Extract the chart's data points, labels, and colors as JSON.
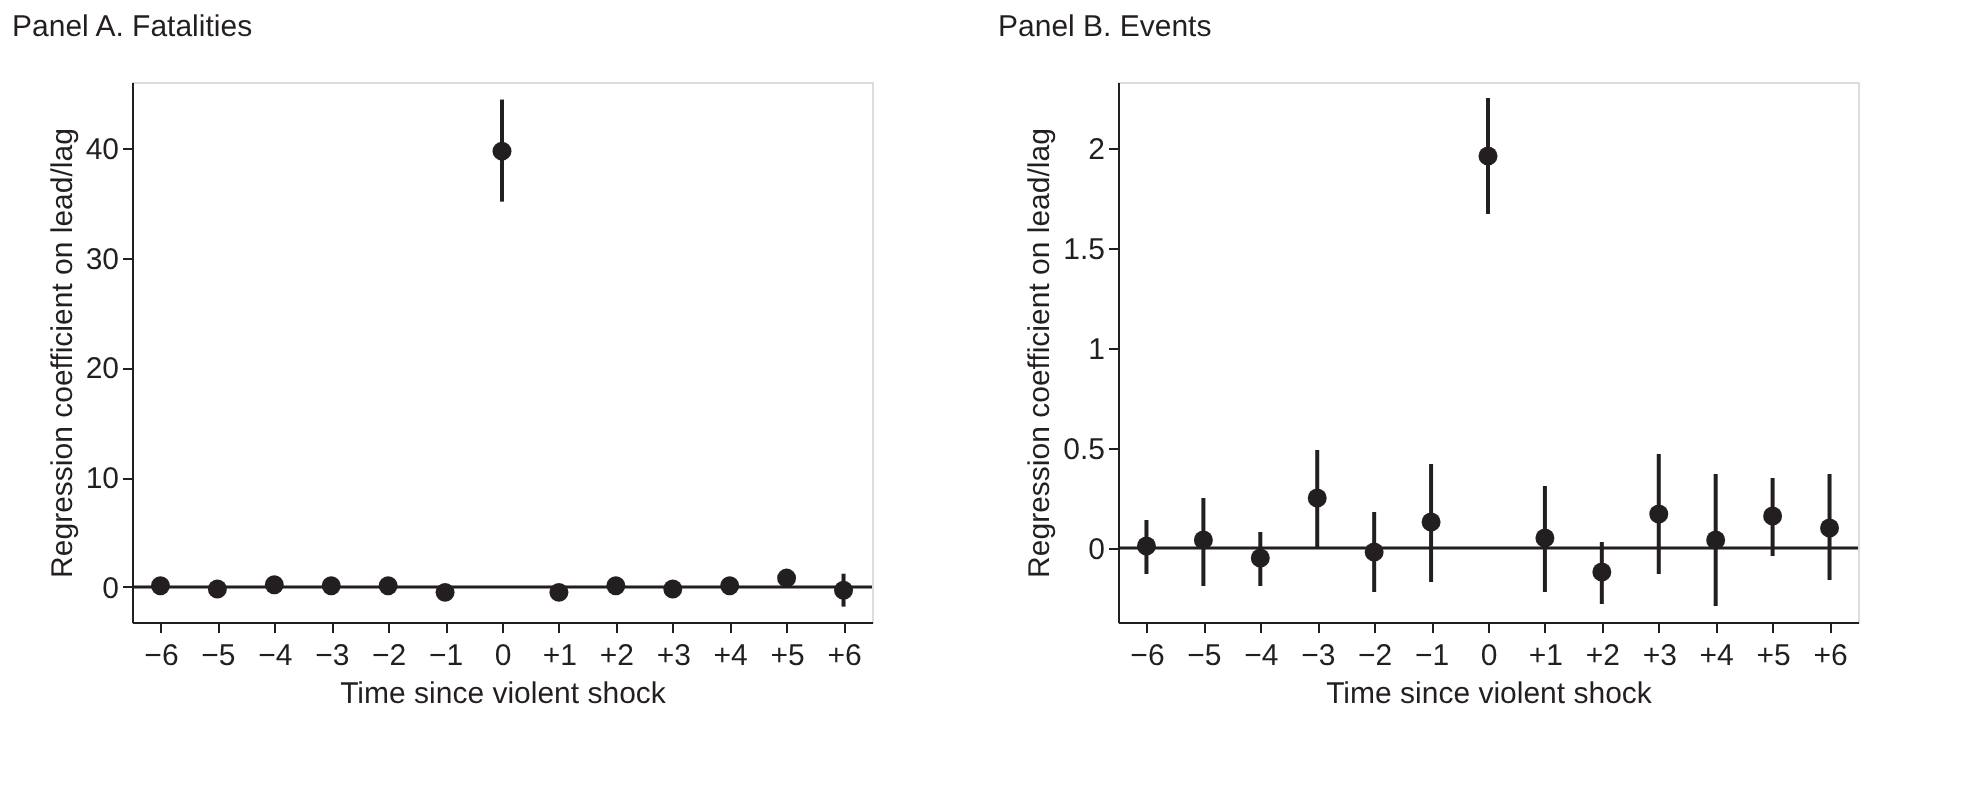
{
  "chart_data": [
    {
      "type": "scatter",
      "title": "Panel A. Fatalities",
      "xlabel": "Time since violent shock",
      "ylabel": "Regression coefficient on lead/lag",
      "categories": [
        "−6",
        "−5",
        "−4",
        "−3",
        "−2",
        "−1",
        "0",
        "+1",
        "+2",
        "+3",
        "+4",
        "+5",
        "+6"
      ],
      "series": [
        {
          "color": "#231f20",
          "values": [
            0.1,
            -0.2,
            0.2,
            0.1,
            0.1,
            -0.5,
            39.7,
            -0.5,
            0.1,
            -0.2,
            0.1,
            0.8,
            -0.3
          ],
          "errors": [
            null,
            null,
            null,
            null,
            [
              -0.5,
              0.7
            ],
            null,
            [
              35.1,
              44.4
            ],
            null,
            null,
            null,
            null,
            [
              0.1,
              1.5
            ],
            [
              -1.8,
              1.2
            ]
          ]
        }
      ],
      "ylim": [
        -3.2,
        46
      ],
      "yticks": [
        0,
        10,
        20,
        30,
        40
      ],
      "marker": "circle",
      "grid": false,
      "ref_lines": [
        {
          "axis": "y",
          "value": 0,
          "color": "#231f20"
        }
      ]
    },
    {
      "type": "scatter",
      "title": "Panel B. Events",
      "xlabel": "Time since violent shock",
      "ylabel": "Regression coefficient on lead/lag",
      "categories": [
        "−6",
        "−5",
        "−4",
        "−3",
        "−2",
        "−1",
        "0",
        "+1",
        "+2",
        "+3",
        "+4",
        "+5",
        "+6"
      ],
      "series": [
        {
          "color": "#231f20",
          "values": [
            0.01,
            0.04,
            -0.05,
            0.25,
            -0.02,
            0.13,
            1.96,
            0.05,
            -0.12,
            0.17,
            0.04,
            0.16,
            0.1
          ],
          "errors": [
            [
              -0.13,
              0.14
            ],
            [
              -0.19,
              0.25
            ],
            [
              -0.19,
              0.08
            ],
            [
              0,
              0.49
            ],
            [
              -0.22,
              0.18
            ],
            [
              -0.17,
              0.42
            ],
            [
              1.67,
              2.25
            ],
            [
              -0.22,
              0.31
            ],
            [
              -0.28,
              0.03
            ],
            [
              -0.13,
              0.47
            ],
            [
              -0.29,
              0.37
            ],
            [
              -0.04,
              0.35
            ],
            [
              -0.16,
              0.37
            ]
          ]
        }
      ],
      "ylim": [
        -0.37,
        2.33
      ],
      "yticks": [
        0,
        0.5,
        1,
        1.5,
        2
      ],
      "marker": "circle",
      "grid": false,
      "ref_lines": [
        {
          "axis": "y",
          "value": 0,
          "color": "#231f20"
        }
      ]
    }
  ]
}
